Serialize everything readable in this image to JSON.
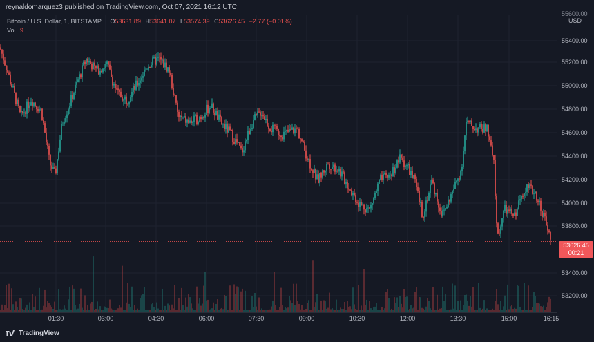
{
  "header": {
    "published": "reynaldomarquez3 published on TradingView.com, Oct 07, 2021 16:12 UTC"
  },
  "legend": {
    "symbol": "Bitcoin / U.S. Dollar, 1, BITSTAMP",
    "o_label": "O",
    "o_value": "53631.89",
    "h_label": "H",
    "h_value": "53641.07",
    "l_label": "L",
    "l_value": "53574.39",
    "c_label": "C",
    "c_value": "53626.45",
    "change": "−2.77 (−0.01%)",
    "vol_label": "Vol",
    "vol_value": "9"
  },
  "yaxis": {
    "currency": "USD",
    "ticks": [
      "55400.00",
      "55200.00",
      "55000.00",
      "54800.00",
      "54600.00",
      "54400.00",
      "54200.00",
      "54000.00",
      "53800.00",
      "53400.00",
      "53200.00"
    ],
    "top_label": "55600.00"
  },
  "price_tag": {
    "price": "53626.45",
    "countdown": "00:21"
  },
  "xaxis": {
    "ticks": [
      "01:30",
      "03:00",
      "04:30",
      "06:00",
      "07:30",
      "09:00",
      "10:30",
      "12:00",
      "13:30",
      "15:00",
      "16:15"
    ]
  },
  "footer": {
    "brand": "TradingView"
  },
  "colors": {
    "up": "#26a69a",
    "down": "#ef5350",
    "background": "#151924",
    "grid": "#1f2330"
  },
  "chart_data": {
    "type": "candlestick",
    "symbol": "BTCUSD",
    "interval": "1",
    "ylim": [
      53100,
      55600
    ],
    "last_price": 53626.45,
    "price_path": [
      [
        0,
        55300
      ],
      [
        8,
        55150
      ],
      [
        18,
        54950
      ],
      [
        30,
        54700
      ],
      [
        45,
        54850
      ],
      [
        60,
        54750
      ],
      [
        72,
        54300
      ],
      [
        80,
        54200
      ],
      [
        90,
        54650
      ],
      [
        100,
        54800
      ],
      [
        112,
        55000
      ],
      [
        125,
        55200
      ],
      [
        140,
        55100
      ],
      [
        155,
        55150
      ],
      [
        170,
        54900
      ],
      [
        185,
        54850
      ],
      [
        200,
        55000
      ],
      [
        215,
        55150
      ],
      [
        230,
        55200
      ],
      [
        245,
        55100
      ],
      [
        258,
        54700
      ],
      [
        275,
        54650
      ],
      [
        290,
        54700
      ],
      [
        305,
        54800
      ],
      [
        320,
        54650
      ],
      [
        335,
        54550
      ],
      [
        350,
        54400
      ],
      [
        365,
        54650
      ],
      [
        378,
        54750
      ],
      [
        392,
        54600
      ],
      [
        410,
        54550
      ],
      [
        430,
        54600
      ],
      [
        445,
        54350
      ],
      [
        460,
        54150
      ],
      [
        475,
        54300
      ],
      [
        490,
        54250
      ],
      [
        505,
        54100
      ],
      [
        520,
        53950
      ],
      [
        535,
        53900
      ],
      [
        550,
        54150
      ],
      [
        565,
        54200
      ],
      [
        580,
        54350
      ],
      [
        592,
        54250
      ],
      [
        600,
        54150
      ],
      [
        612,
        53850
      ],
      [
        625,
        54150
      ],
      [
        640,
        53850
      ],
      [
        655,
        54050
      ],
      [
        668,
        54250
      ],
      [
        675,
        54650
      ],
      [
        690,
        54600
      ],
      [
        705,
        54600
      ],
      [
        715,
        54300
      ],
      [
        720,
        53650
      ],
      [
        730,
        53900
      ],
      [
        745,
        53850
      ],
      [
        760,
        54100
      ],
      [
        775,
        54050
      ],
      [
        790,
        53800
      ],
      [
        797,
        53630
      ]
    ],
    "volume_scale_max": 80
  }
}
